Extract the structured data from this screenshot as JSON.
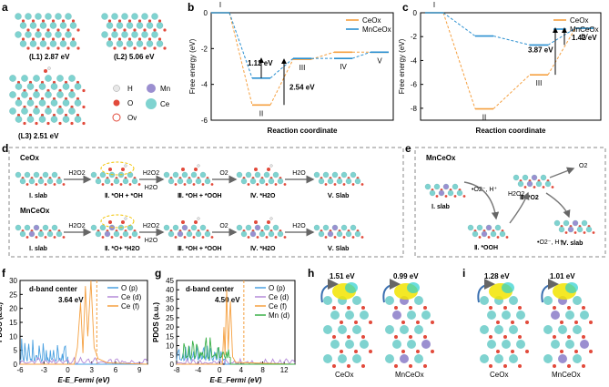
{
  "panels": {
    "a": {
      "label": "a",
      "structs": [
        {
          "id": "L1",
          "energy": "(L1) 2.87 eV"
        },
        {
          "id": "L2",
          "energy": "(L2) 5.06 eV"
        },
        {
          "id": "L3",
          "energy": "(L3) 2.51 eV"
        }
      ],
      "legend": [
        {
          "sym": "H",
          "color": "#e8e8e8"
        },
        {
          "sym": "O",
          "color": "#e24a3b"
        },
        {
          "sym": "Ov",
          "color": "#ffffff"
        },
        {
          "sym": "Mn",
          "color": "#9b8fd0"
        },
        {
          "sym": "Ce",
          "color": "#7fd3d0"
        }
      ]
    },
    "b": {
      "label": "b",
      "colors": {
        "ceo": "#f5a040",
        "mnceo": "#2a8fd0"
      }
    },
    "c": {
      "label": "c"
    },
    "d": {
      "label": "d",
      "rows": [
        {
          "material": "CeOx",
          "steps": [
            "Ⅰ. slab",
            "Ⅱ. *OH + *OH",
            "Ⅲ. *OH + *OOH",
            "Ⅳ. *H2O",
            "Ⅴ. Slab"
          ],
          "arrows": [
            "H2O2",
            "H2O2",
            "O2",
            "H2O"
          ],
          "below": [
            "",
            "H2O",
            "",
            ""
          ]
        },
        {
          "material": "MnCeOx",
          "steps": [
            "Ⅰ. slab",
            "Ⅱ. *O+ *H2O",
            "Ⅲ. *OH + *OOH",
            "Ⅳ. *H2O",
            "Ⅴ. Slab"
          ],
          "arrows": [
            "H2O2",
            "H2O2",
            "O2",
            "H2O"
          ],
          "below": [
            "",
            "H2O",
            "",
            ""
          ]
        }
      ]
    },
    "e": {
      "label": "e",
      "material": "MnCeOx",
      "steps": [
        "Ⅰ. slab",
        "Ⅱ. *OOH",
        "Ⅲ. *O2",
        "Ⅳ. slab"
      ],
      "reagents": [
        "•O2⁻, H⁺",
        "H2O2",
        "O2",
        "•O2⁻, H⁺"
      ]
    },
    "f": {
      "label": "f"
    },
    "g": {
      "label": "g"
    },
    "h": {
      "label": "h",
      "items": [
        {
          "energy": "1.51 eV",
          "name": "CeOx"
        },
        {
          "energy": "0.99 eV",
          "name": "MnCeOx"
        }
      ]
    },
    "i": {
      "label": "i",
      "items": [
        {
          "energy": "1.28 eV",
          "name": "CeOx"
        },
        {
          "energy": "1.01 eV",
          "name": "MnCeOx"
        }
      ]
    }
  },
  "chart_data": [
    {
      "id": "b",
      "type": "line",
      "title": "",
      "xlabel": "Reaction coordinate",
      "ylabel": "Free energy (eV)",
      "ylim": [
        -6,
        0
      ],
      "yticks": [
        0,
        -2,
        -4,
        -6
      ],
      "categories": [
        "I",
        "II",
        "III",
        "IV",
        "V"
      ],
      "series": [
        {
          "name": "CeOx",
          "values": [
            0,
            -5.15,
            -2.6,
            -2.2,
            -2.2
          ]
        },
        {
          "name": "MnCeOx",
          "values": [
            0,
            -3.65,
            -2.55,
            -2.55,
            -2.2
          ]
        }
      ],
      "annotations": [
        "1.12 eV",
        "2.54 eV"
      ]
    },
    {
      "id": "c",
      "type": "line",
      "xlabel": "Reaction coordinate",
      "ylabel": "Free energy (eV)",
      "ylim": [
        -9,
        0
      ],
      "yticks": [
        0,
        -2,
        -4,
        -6,
        -8
      ],
      "categories": [
        "I",
        "II",
        "III",
        "IV"
      ],
      "series": [
        {
          "name": "CeOx",
          "values": [
            0,
            -8.05,
            -5.2,
            -1.3
          ]
        },
        {
          "name": "MnCeOx",
          "values": [
            0,
            -1.95,
            -2.7,
            -1.3
          ]
        }
      ],
      "annotations": [
        "3.87 eV",
        "1.42 eV"
      ]
    },
    {
      "id": "f",
      "type": "line",
      "xlabel": "E-E_Fermi (eV)",
      "ylabel": "PDOS (a.u.)",
      "xlim": [
        -6,
        10
      ],
      "ylim": [
        0,
        30
      ],
      "xticks": [
        -6,
        -3,
        0,
        3,
        6,
        9
      ],
      "yticks": [
        0,
        5,
        10,
        15,
        20,
        25,
        30
      ],
      "series": [
        {
          "name": "O (p)",
          "color": "#4aa0e0"
        },
        {
          "name": "Ce (d)",
          "color": "#b48ad8"
        },
        {
          "name": "Ce (f)",
          "color": "#f5a040"
        }
      ],
      "annotation_title": "d-band center",
      "annotation_value": "3.64 eV",
      "dband": 3.64
    },
    {
      "id": "g",
      "type": "line",
      "xlabel": "E-E_Fermi (eV)",
      "ylabel": "PDOS (a.u.)",
      "xlim": [
        -8,
        14
      ],
      "ylim": [
        0,
        45
      ],
      "xticks": [
        -8,
        -4,
        0,
        4,
        8,
        12
      ],
      "yticks": [
        0,
        5,
        10,
        15,
        20,
        25,
        30,
        35,
        40,
        45
      ],
      "series": [
        {
          "name": "O (p)",
          "color": "#4aa0e0"
        },
        {
          "name": "Ce (d)",
          "color": "#b48ad8"
        },
        {
          "name": "Ce (f)",
          "color": "#f5a040"
        },
        {
          "name": "Mn (d)",
          "color": "#3ab048"
        }
      ],
      "annotation_title": "d-band center",
      "annotation_value": "4.50 eV",
      "dband": 4.5
    }
  ]
}
